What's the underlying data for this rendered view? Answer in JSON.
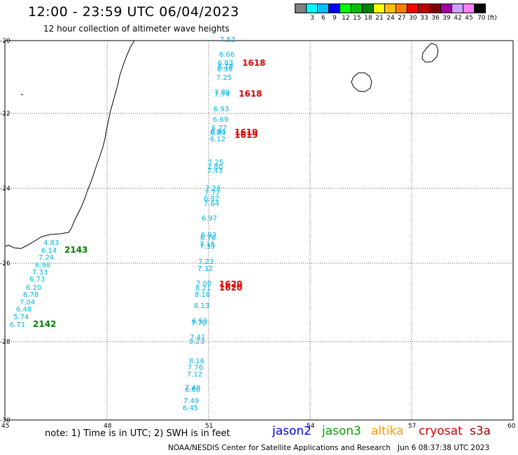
{
  "header": {
    "title": "12:00 - 23:59 UTC 06/04/2023",
    "subtitle": "12 hour collection of altimeter wave heights"
  },
  "scale": {
    "colors": [
      "#808080",
      "#00ffff",
      "#00bfff",
      "#0000ff",
      "#00ff00",
      "#00c000",
      "#008000",
      "#ffff00",
      "#ffc000",
      "#ff8000",
      "#ff0000",
      "#c00000",
      "#800000",
      "#a000a0",
      "#d0a0ff",
      "#ff80ff",
      "#000000"
    ],
    "labels": [
      "3",
      "6",
      "9",
      "12",
      "15",
      "18",
      "21",
      "24",
      "27",
      "30",
      "33",
      "36",
      "39",
      "42",
      "45",
      "70 (ft)"
    ]
  },
  "map": {
    "lat_ticks": [
      "-20",
      "-22",
      "-24",
      "-26",
      "-28",
      "-30"
    ],
    "lon_ticks": [
      "45",
      "48",
      "51",
      "54",
      "57",
      "60"
    ],
    "wave_heights": [
      [
        "7.52",
        314,
        56
      ],
      [
        "6.66",
        313,
        77
      ],
      [
        "6.83",
        311,
        89
      ],
      [
        "6.78",
        311,
        94
      ],
      [
        "6.98",
        310,
        98
      ],
      [
        "7.25",
        309,
        110
      ],
      [
        "7.80",
        306,
        131
      ],
      [
        "7.74",
        306,
        134
      ],
      [
        "6.93",
        305,
        155
      ],
      [
        "6.69",
        304,
        170
      ],
      [
        "6.77",
        302,
        182
      ],
      [
        "6.91",
        301,
        187
      ],
      [
        "6.89",
        300,
        189
      ],
      [
        "6.12",
        300,
        198
      ],
      [
        "7.25",
        297,
        231
      ],
      [
        "7.80",
        296,
        238
      ],
      [
        "7.43",
        296,
        243
      ],
      [
        "7.24",
        293,
        268
      ],
      [
        "7.77",
        292,
        275
      ],
      [
        "6.82",
        291,
        283
      ],
      [
        "7.64",
        291,
        290
      ],
      [
        "6.97",
        288,
        311
      ],
      [
        "6.93",
        287,
        335
      ],
      [
        "6.76",
        286,
        339
      ],
      [
        "7.15",
        285,
        348
      ],
      [
        "7.39",
        285,
        351
      ],
      [
        "7.23",
        283,
        373
      ],
      [
        "7.32",
        282,
        383
      ],
      [
        "7.00",
        280,
        404
      ],
      [
        "8.21",
        279,
        411
      ],
      [
        "8.16",
        278,
        420
      ],
      [
        "8.13",
        277,
        436
      ],
      [
        "6.59",
        274,
        458
      ],
      [
        "7.70",
        273,
        461
      ],
      [
        "7.41",
        271,
        481
      ],
      [
        "8.23",
        270,
        487
      ],
      [
        "8.16",
        270,
        515
      ],
      [
        "7.76",
        268,
        524
      ],
      [
        "7.12",
        267,
        534
      ],
      [
        "7.40",
        264,
        553
      ],
      [
        "6.60",
        264,
        556
      ],
      [
        "7.49",
        262,
        572
      ],
      [
        "6.45",
        261,
        582
      ],
      [
        "4.83",
        62,
        346
      ],
      [
        "6.14",
        59,
        357
      ],
      [
        "7.24",
        55,
        367
      ],
      [
        "6.98",
        50,
        378
      ],
      [
        "7.33",
        46,
        388
      ],
      [
        "6.73",
        42,
        398
      ],
      [
        "6.20",
        37,
        410
      ],
      [
        "6.78",
        33,
        420
      ],
      [
        "7.04",
        28,
        431
      ],
      [
        "6.48",
        23,
        441
      ],
      [
        "5.74",
        19,
        452
      ],
      [
        "6.71",
        14,
        463
      ]
    ],
    "time_labels_red": [
      [
        "1618",
        346,
        89
      ],
      [
        "1618",
        341,
        133
      ],
      [
        "1619",
        335,
        188
      ],
      [
        "1619",
        335,
        192
      ],
      [
        "1620",
        313,
        405
      ],
      [
        "1620",
        313,
        410
      ]
    ],
    "time_labels_green": [
      [
        "2143",
        92,
        356
      ],
      [
        "2142",
        47,
        462
      ]
    ]
  },
  "legend": {
    "note": "note:  1) Time is in UTC; 2) SWH is in feet",
    "satellites": [
      {
        "name": "jason2",
        "color": "#0000e0"
      },
      {
        "name": "jason3",
        "color": "#00a000"
      },
      {
        "name": "altika",
        "color": "#ff9900"
      },
      {
        "name": "cryosat",
        "color": "#cc0000"
      },
      {
        "name": "s3a",
        "color": "#a00000"
      }
    ]
  },
  "footer": {
    "credit": "NOAA/NESDIS Center for Satellite Applications and Research",
    "timestamp": "Jun  6 08:37:38 UTC 2023"
  }
}
